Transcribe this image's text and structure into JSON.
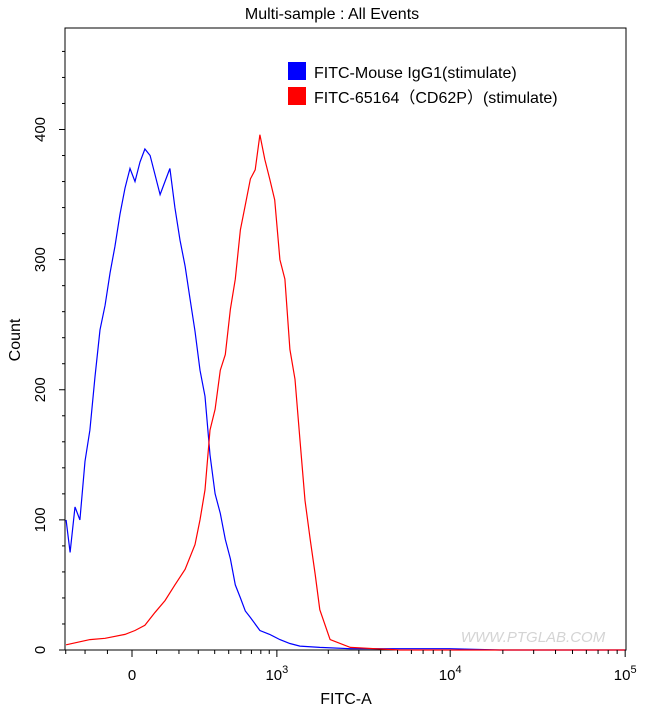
{
  "chart_data": {
    "type": "line",
    "title": "Multi-sample : All Events",
    "xlabel": "FITC-A",
    "ylabel": "Count",
    "xscale": "biexponential",
    "xlim": [
      -300,
      100000
    ],
    "ylim": [
      0,
      478
    ],
    "x_ticks": [
      {
        "value": 0,
        "label": "0"
      },
      {
        "value": 1000,
        "base": "10",
        "exp": "3"
      },
      {
        "value": 10000,
        "base": "10",
        "exp": "4"
      },
      {
        "value": 100000,
        "base": "10",
        "exp": "5"
      }
    ],
    "y_ticks": [
      0,
      100,
      200,
      300,
      400
    ],
    "grid": false,
    "legend_position": "top-right",
    "watermark": "WWW.PTGLAB.COM",
    "series": [
      {
        "name": "FITC-Mouse IgG1(stimulate)",
        "color": "#0000ff",
        "x": [
          -298,
          -276,
          -250,
          -225,
          -200,
          -177,
          -154,
          -132,
          -110,
          -89,
          -69,
          -48,
          -28,
          -8,
          12,
          32,
          52,
          73,
          94,
          115,
          136,
          158,
          181,
          205,
          230,
          255,
          282,
          310,
          339,
          370,
          403,
          438,
          474,
          513,
          553,
          596,
          641,
          690,
          790,
          906,
          1043,
          1195,
          1368,
          1785,
          2680,
          5170,
          9940,
          19200,
          100000
        ],
        "y": [
          100,
          75,
          110,
          100,
          145,
          169,
          210,
          246,
          265,
          290,
          310,
          335,
          355,
          370,
          360,
          375,
          385,
          380,
          365,
          350,
          360,
          370,
          340,
          315,
          295,
          270,
          245,
          215,
          195,
          150,
          120,
          105,
          85,
          70,
          50,
          40,
          30,
          25,
          15,
          12,
          8,
          5,
          3,
          2,
          1,
          1,
          1,
          0,
          0
        ]
      },
      {
        "name": "FITC-65164（CD62P）(stimulate)",
        "color": "#ff0000",
        "x": [
          -298,
          -177,
          -110,
          -28,
          12,
          52,
          94,
          136,
          181,
          230,
          282,
          310,
          339,
          370,
          403,
          438,
          474,
          513,
          553,
          596,
          641,
          690,
          739,
          790,
          846,
          906,
          971,
          1043,
          1116,
          1195,
          1280,
          1368,
          1465,
          1570,
          1680,
          1785,
          2050,
          2680,
          5170,
          100000
        ],
        "y": [
          4,
          8,
          9,
          12,
          15,
          19,
          29,
          38,
          50,
          62,
          81,
          100,
          123,
          169,
          185,
          215,
          227,
          262,
          285,
          323,
          342,
          362,
          369,
          396,
          377,
          362,
          346,
          300,
          285,
          231,
          208,
          162,
          115,
          85,
          58,
          31,
          8,
          2,
          0,
          0
        ]
      }
    ]
  }
}
